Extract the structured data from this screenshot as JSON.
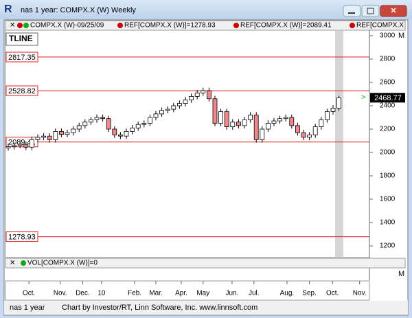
{
  "window": {
    "title": "nas 1 year: COMPX.X (W) Weekly"
  },
  "legend": [
    "COMPX.X (W)-09/25/09",
    "REF[COMPX.X (W)]=1278.93",
    "REF[COMPX.X (W)]=2089.41",
    "REF[COMPX.X ("
  ],
  "chart_data": {
    "type": "candlestick",
    "annotation": "TLINE",
    "open": [
      2040,
      2050,
      2060,
      2070,
      2045,
      2110,
      2130,
      2140,
      2110,
      2180,
      2155,
      2170,
      2200,
      2230,
      2260,
      2280,
      2300,
      2290,
      2200,
      2150,
      2140,
      2180,
      2210,
      2240,
      2250,
      2300,
      2330,
      2360,
      2370,
      2400,
      2420,
      2450,
      2480,
      2510,
      2530,
      2460,
      2250,
      2350,
      2220,
      2260,
      2230,
      2280,
      2320,
      2110,
      2200,
      2250,
      2270,
      2290,
      2300,
      2230,
      2170,
      2130,
      2150,
      2220,
      2280,
      2350,
      2380
    ],
    "high": [
      2075,
      2085,
      2095,
      2095,
      2135,
      2155,
      2165,
      2165,
      2205,
      2205,
      2195,
      2225,
      2255,
      2285,
      2305,
      2325,
      2325,
      2315,
      2225,
      2175,
      2205,
      2235,
      2265,
      2275,
      2325,
      2355,
      2385,
      2395,
      2425,
      2445,
      2475,
      2505,
      2535,
      2555,
      2555,
      2485,
      2375,
      2375,
      2285,
      2285,
      2305,
      2345,
      2345,
      2225,
      2275,
      2295,
      2315,
      2325,
      2325,
      2255,
      2195,
      2175,
      2245,
      2305,
      2375,
      2405,
      2485
    ],
    "low": [
      2015,
      2025,
      2035,
      2020,
      2020,
      2085,
      2105,
      2085,
      2085,
      2130,
      2130,
      2145,
      2175,
      2205,
      2235,
      2255,
      2265,
      2175,
      2125,
      2115,
      2115,
      2155,
      2185,
      2215,
      2225,
      2275,
      2305,
      2335,
      2345,
      2375,
      2395,
      2425,
      2455,
      2485,
      2435,
      2225,
      2225,
      2195,
      2195,
      2205,
      2205,
      2255,
      2085,
      2085,
      2175,
      2225,
      2245,
      2265,
      2205,
      2145,
      2105,
      2105,
      2125,
      2195,
      2255,
      2325,
      2355
    ],
    "close": [
      2050,
      2060,
      2070,
      2045,
      2110,
      2130,
      2140,
      2110,
      2180,
      2155,
      2170,
      2200,
      2230,
      2260,
      2280,
      2300,
      2290,
      2200,
      2150,
      2140,
      2180,
      2210,
      2240,
      2250,
      2300,
      2330,
      2360,
      2370,
      2400,
      2420,
      2450,
      2480,
      2510,
      2530,
      2460,
      2250,
      2350,
      2220,
      2260,
      2230,
      2280,
      2320,
      2110,
      2200,
      2250,
      2270,
      2290,
      2300,
      2230,
      2170,
      2130,
      2150,
      2220,
      2280,
      2350,
      2380,
      2468.77
    ],
    "up_color": "#ffffff",
    "down_color": "#f08a8a",
    "xticks": [
      {
        "value": 3.5,
        "label": "Oct."
      },
      {
        "value": 8.8,
        "label": "Nov."
      },
      {
        "value": 12.6,
        "label": "Dec."
      },
      {
        "value": 15.8,
        "label": "10"
      },
      {
        "value": 21.4,
        "label": "Feb."
      },
      {
        "value": 25,
        "label": "Mar."
      },
      {
        "value": 29.3,
        "label": "Apr."
      },
      {
        "value": 33,
        "label": "May"
      },
      {
        "value": 37.9,
        "label": "Jun."
      },
      {
        "value": 41.6,
        "label": "Jul."
      },
      {
        "value": 47.2,
        "label": "Aug."
      },
      {
        "value": 51,
        "label": "Sep."
      },
      {
        "value": 54.9,
        "label": "Oct."
      },
      {
        "value": 59.5,
        "label": "Nov."
      }
    ],
    "ylim": [
      1100,
      3041
    ],
    "yticks": [
      1200,
      1400,
      1600,
      1800,
      2000,
      2200,
      2400,
      2600,
      2800,
      3000
    ],
    "ref_lines": [
      2817.35,
      2528.82,
      2089.41,
      1278.93
    ],
    "ref_color": "#e02020",
    "last_price": 2468.77
  },
  "volume_pane": {
    "label": "VOL[COMPX.X (W)]=0"
  },
  "pane_button": "M",
  "status": {
    "left": "nas 1 year",
    "text": "Chart by Investor/RT, Linn Software, Inc. www.linnsoft.com"
  }
}
